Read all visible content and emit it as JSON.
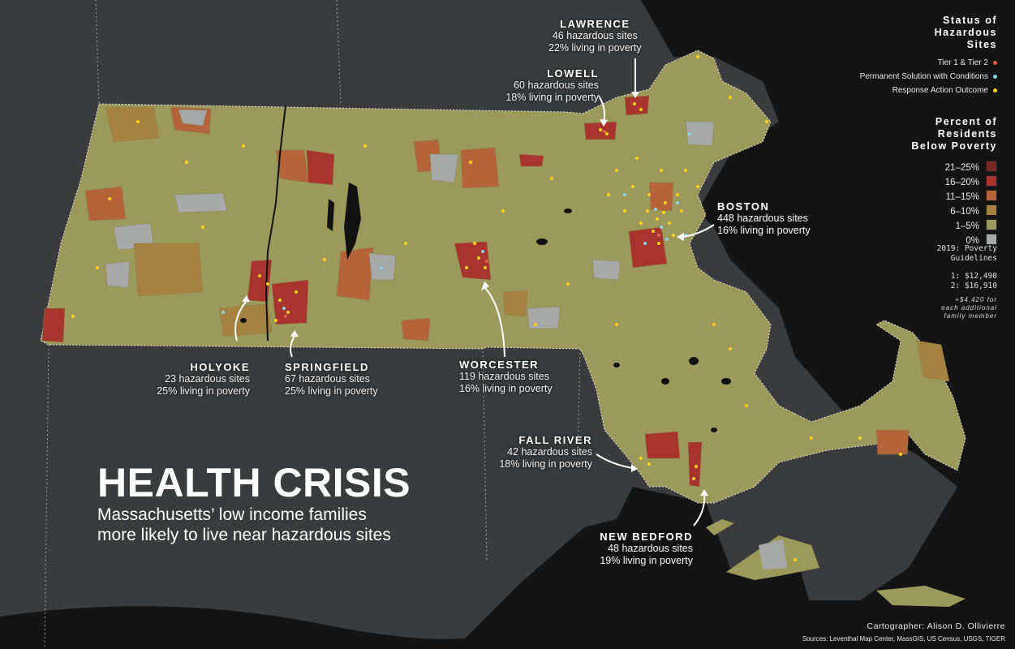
{
  "title": "HEALTH CRISIS",
  "subtitle_line1": "Massachusetts’ low income families",
  "subtitle_line2": "more likely to live near hazardous sites",
  "colors": {
    "background": "#3a3b3d",
    "water": "#141414",
    "poverty_21_25": "#7a2a24",
    "poverty_16_20": "#a8342d",
    "poverty_11_15": "#b5643a",
    "poverty_6_10": "#a5823f",
    "poverty_1_5": "#9b9a5a",
    "poverty_0": "#a7a8a8",
    "tier": "#e0604a",
    "permanent": "#8fd3e8",
    "response": "#ffd21a"
  },
  "cities": [
    {
      "key": "lawrence",
      "name": "LAWRENCE",
      "sites": "46 hazardous sites",
      "poverty": "22% living in poverty"
    },
    {
      "key": "lowell",
      "name": "LOWELL",
      "sites": "60 hazardous sites",
      "poverty": "18% living in poverty"
    },
    {
      "key": "boston",
      "name": "BOSTON",
      "sites": "448 hazardous sites",
      "poverty": "16% living in poverty"
    },
    {
      "key": "holyoke",
      "name": "HOLYOKE",
      "sites": "23 hazardous sites",
      "poverty": "25% living in poverty"
    },
    {
      "key": "springfield",
      "name": "SPRINGFIELD",
      "sites": "67 hazardous sites",
      "poverty": "25% living in poverty"
    },
    {
      "key": "worcester",
      "name": "WORCESTER",
      "sites": "119 hazardous sites",
      "poverty": "16% living in poverty"
    },
    {
      "key": "fall_river",
      "name": "FALL RIVER",
      "sites": "42 hazardous sites",
      "poverty": "18% living in poverty"
    },
    {
      "key": "new_bedford",
      "name": "NEW BEDFORD",
      "sites": "48 hazardous sites",
      "poverty": "19% living in poverty"
    }
  ],
  "legend_status": {
    "heading_line1": "Status of",
    "heading_line2": "Hazardous",
    "heading_line3": "Sites",
    "items": [
      {
        "label": "Tier 1 & Tier 2",
        "color": "#e0604a"
      },
      {
        "label": "Permanent Solution with Conditions",
        "color": "#8fd3e8"
      },
      {
        "label": "Response Action Outcome",
        "color": "#ffd21a"
      }
    ]
  },
  "legend_poverty": {
    "heading_line1": "Percent of",
    "heading_line2": "Residents",
    "heading_line3": "Below Poverty",
    "items": [
      {
        "label": "21–25%",
        "color": "#7a2a24"
      },
      {
        "label": "16–20%",
        "color": "#a8342d"
      },
      {
        "label": "11–15%",
        "color": "#b5643a"
      },
      {
        "label": "6–10%",
        "color": "#a5823f"
      },
      {
        "label": "1–5%",
        "color": "#9b9a5a"
      },
      {
        "label": "0%",
        "color": "#a7a8a8"
      }
    ]
  },
  "guidelines": {
    "line1": "2019: Poverty",
    "line2": "Guidelines",
    "line3": "1: $12,490",
    "line4": "2: $16,910",
    "note1": "+$4,420 for",
    "note2": "each additional",
    "note3": "family member"
  },
  "cartographer": "Cartographer: Alison D. Ollivierre",
  "sources": "Sources: Leventhal Map Center, MassGIS, US Census, USGS, TIGER"
}
